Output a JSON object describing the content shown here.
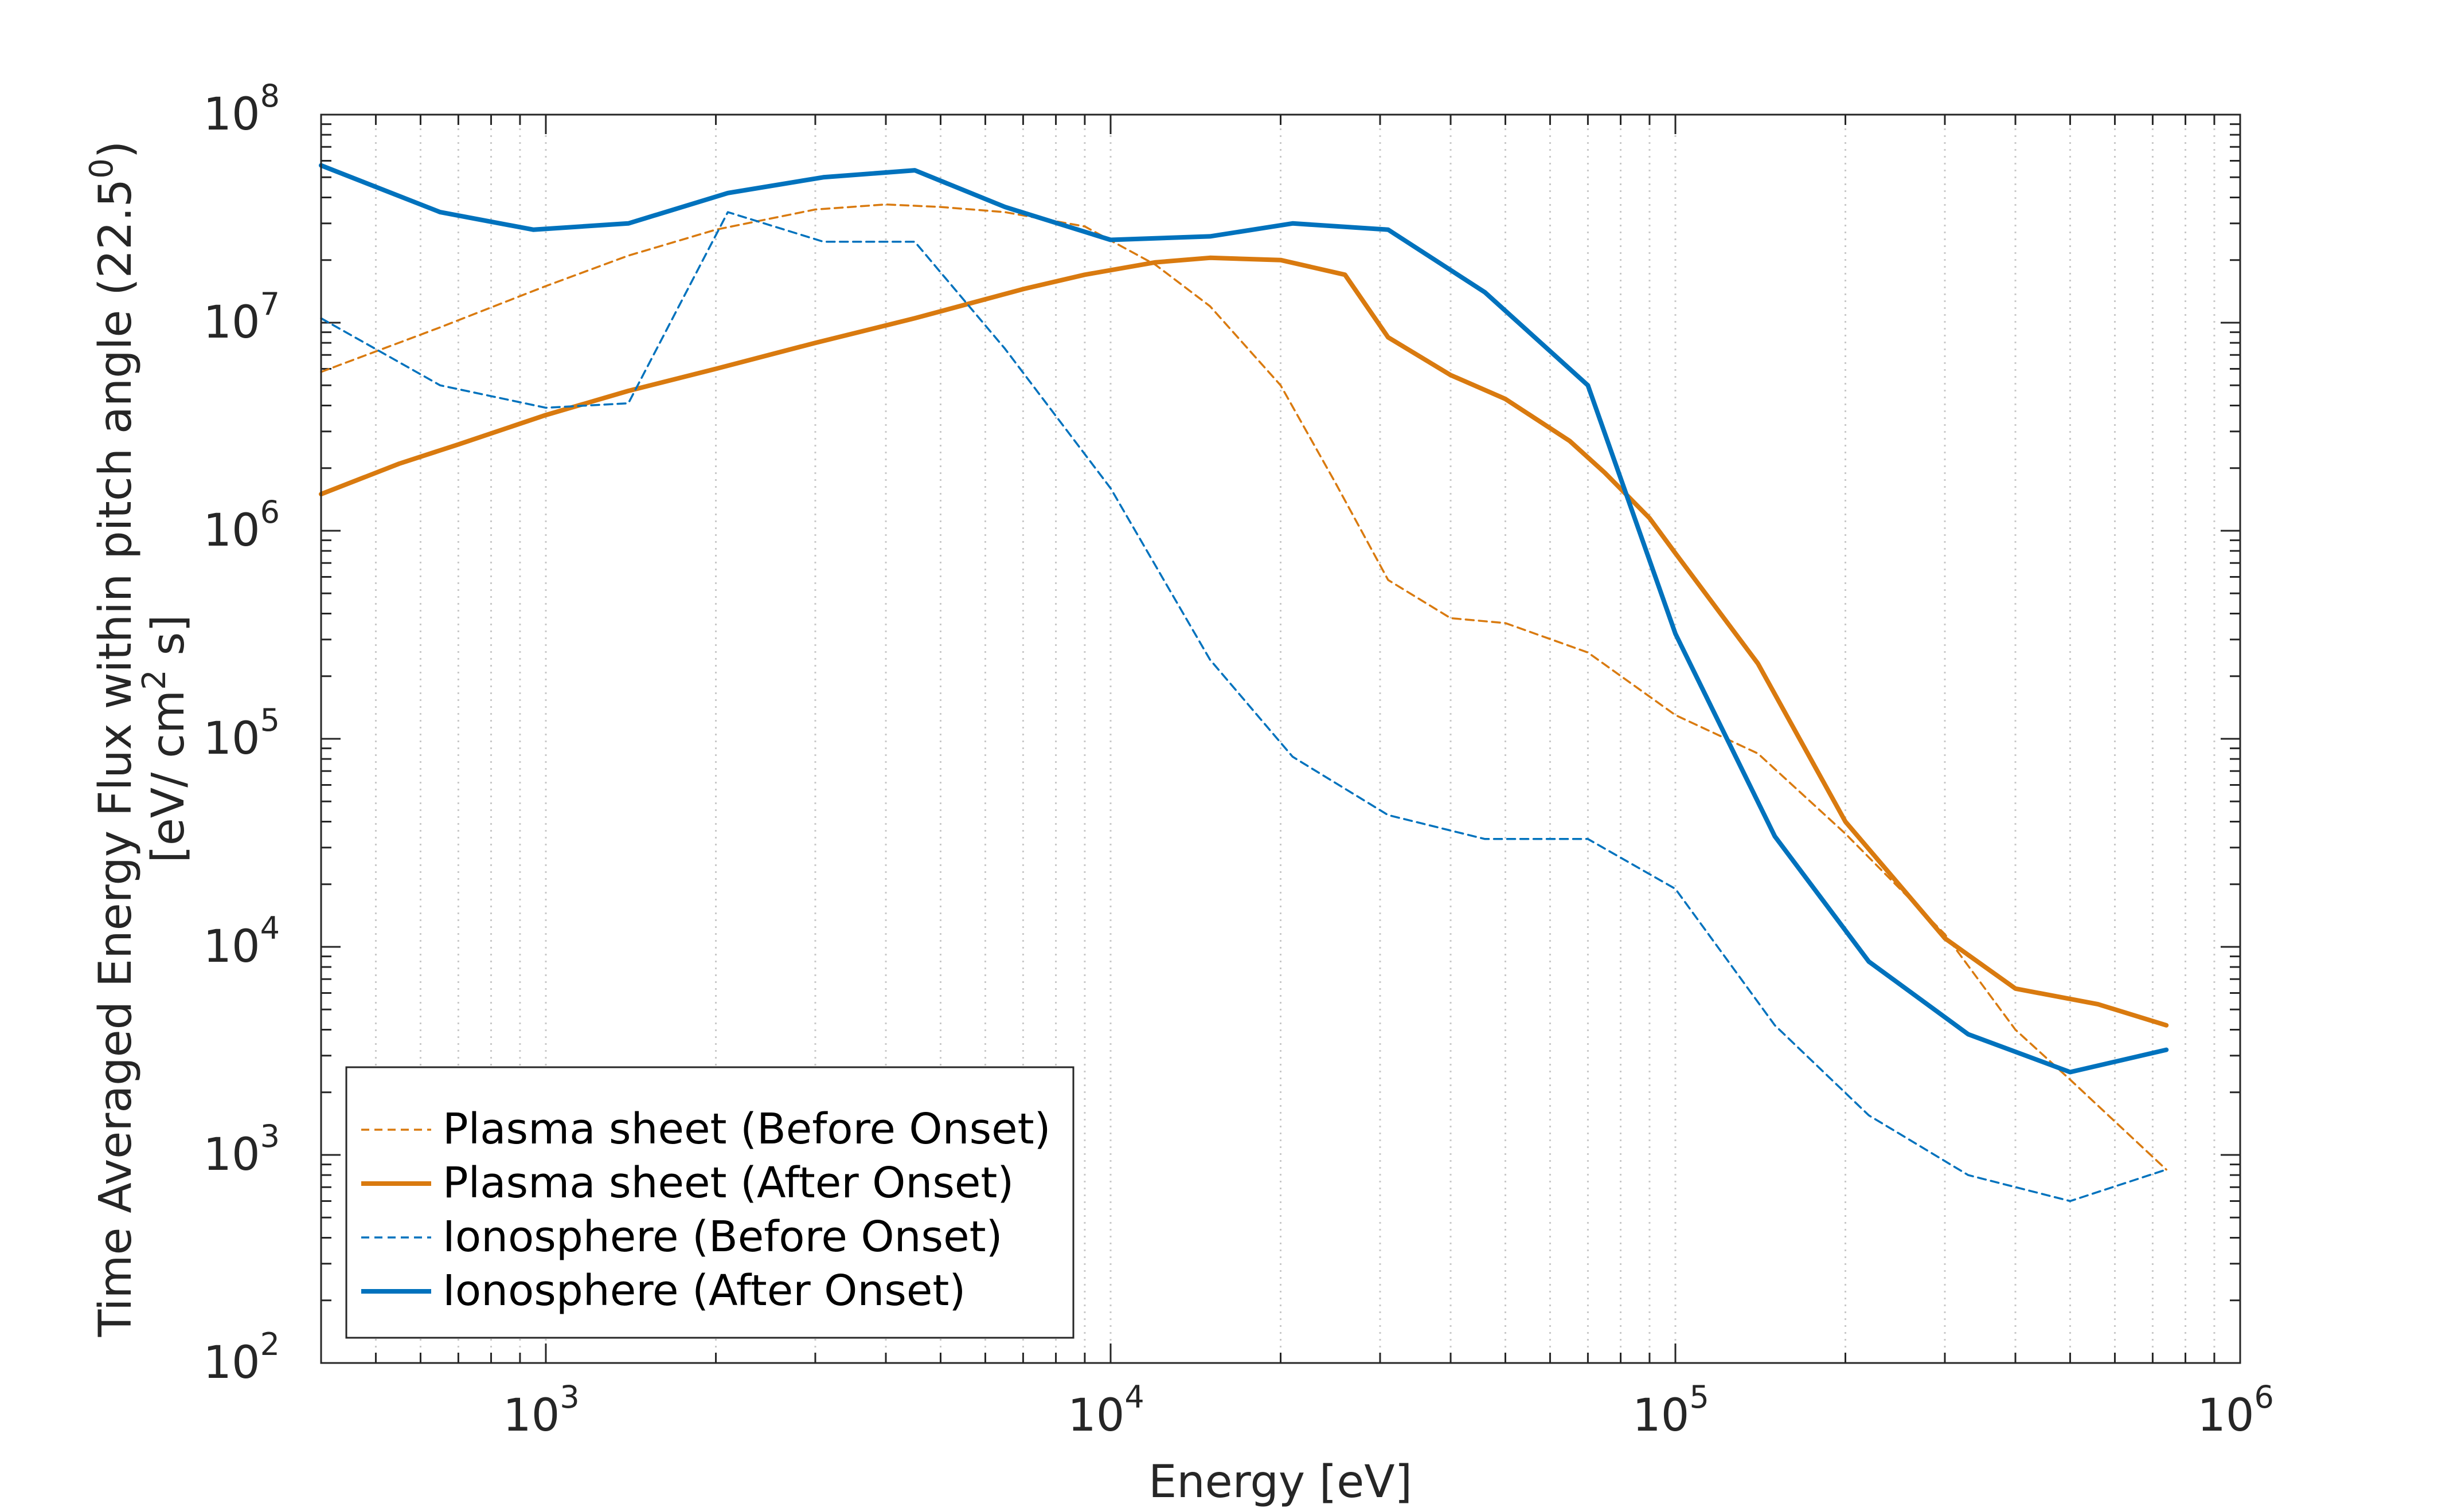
{
  "chart_data": {
    "type": "line",
    "xlabel": "Energy [eV]",
    "ylabel_line1_pre": "Time Averaged Energy Flux within pitch angle (22.5",
    "ylabel_line1_sup": "0",
    "ylabel_line1_post": ")",
    "ylabel_line2_pre": "[eV/ cm",
    "ylabel_line2_sup": "2",
    "ylabel_line2_post": " s]",
    "x_scale": "log",
    "y_scale": "log",
    "xlim": [
      400,
      1000000
    ],
    "ylim": [
      100,
      100000000
    ],
    "grid": "x-minor-dotted",
    "legend_position": "bottom-left",
    "x_ticks": [
      {
        "value": 1000,
        "base": "10",
        "exp": "3"
      },
      {
        "value": 10000,
        "base": "10",
        "exp": "4"
      },
      {
        "value": 100000,
        "base": "10",
        "exp": "5"
      },
      {
        "value": 1000000,
        "base": "10",
        "exp": "6"
      }
    ],
    "y_ticks": [
      {
        "value": 100,
        "base": "10",
        "exp": "2"
      },
      {
        "value": 1000,
        "base": "10",
        "exp": "3"
      },
      {
        "value": 10000,
        "base": "10",
        "exp": "4"
      },
      {
        "value": 100000,
        "base": "10",
        "exp": "5"
      },
      {
        "value": 1000000,
        "base": "10",
        "exp": "6"
      },
      {
        "value": 10000000,
        "base": "10",
        "exp": "7"
      },
      {
        "value": 100000000,
        "base": "10",
        "exp": "8"
      }
    ],
    "series": [
      {
        "name": "Plasma sheet (Before Onset)",
        "color": "#D97A0F",
        "style": "dashed",
        "x": [
          400,
          650,
          1000,
          1400,
          2000,
          3000,
          4000,
          5000,
          6500,
          9000,
          12000,
          15000,
          20000,
          25000,
          31000,
          40000,
          50000,
          70000,
          100000,
          140000,
          200000,
          300000,
          400000,
          500000,
          740000
        ],
        "y": [
          5800000.0,
          9500000.0,
          15000000.0,
          21000000.0,
          28000000.0,
          35000000.0,
          37000000.0,
          36000000.0,
          34000000.0,
          29000000.0,
          19000000.0,
          12000000.0,
          5000000.0,
          1700000.0,
          580000.0,
          380000.0,
          360000.0,
          260000.0,
          130000.0,
          85000.0,
          35000.0,
          11500.0,
          4000.0,
          2300.0,
          850.0
        ]
      },
      {
        "name": "Plasma sheet (After Onset)",
        "color": "#D97A0F",
        "style": "solid",
        "x": [
          400,
          550,
          700,
          1000,
          1400,
          2000,
          3000,
          4500,
          7000,
          9000,
          12000,
          15000,
          20000,
          26000,
          31000,
          40000,
          50000,
          65000,
          75000,
          90000,
          100000,
          140000,
          200000,
          300000,
          400000,
          560000,
          740000
        ],
        "y": [
          1500000.0,
          2100000.0,
          2600000.0,
          3600000.0,
          4700000.0,
          6000000.0,
          8000000.0,
          10500000.0,
          14500000.0,
          17000000.0,
          19500000.0,
          20500000.0,
          20000000.0,
          17000000.0,
          8500000.0,
          5600000.0,
          4300000.0,
          2700000.0,
          1900000.0,
          1150000.0,
          780000.0,
          230000.0,
          40000.0,
          11000.0,
          6300.0,
          5300.0,
          4200.0
        ]
      },
      {
        "name": "Ionosphere (Before Onset)",
        "color": "#0072BD",
        "style": "dashed",
        "x": [
          400,
          650,
          1000,
          1400,
          2100,
          3100,
          4500,
          6500,
          10000,
          15000,
          21000,
          31000,
          46000,
          70000,
          100000,
          150000,
          220000,
          330000,
          500000,
          740000
        ],
        "y": [
          10500000.0,
          5000000.0,
          3900000.0,
          4100000.0,
          34000000.0,
          24500000.0,
          24500000.0,
          7500000.0,
          1600000.0,
          240000.0,
          82000.0,
          43000.0,
          33000.0,
          33000.0,
          19000.0,
          4200.0,
          1550.0,
          800.0,
          600.0,
          850.0
        ]
      },
      {
        "name": "Ionosphere (After Onset)",
        "color": "#0072BD",
        "style": "solid",
        "x": [
          400,
          650,
          950,
          1400,
          2100,
          3100,
          4500,
          6500,
          10000,
          15000,
          21000,
          31000,
          46000,
          70000,
          100000,
          150000,
          220000,
          330000,
          500000,
          740000
        ],
        "y": [
          57000000.0,
          34000000.0,
          28000000.0,
          30000000.0,
          42000000.0,
          50000000.0,
          54000000.0,
          36000000.0,
          25000000.0,
          26000000.0,
          30000000.0,
          28000000.0,
          14000000.0,
          5000000.0,
          320000.0,
          34000.0,
          8500.0,
          3800.0,
          2500.0,
          3200.0
        ]
      }
    ]
  }
}
